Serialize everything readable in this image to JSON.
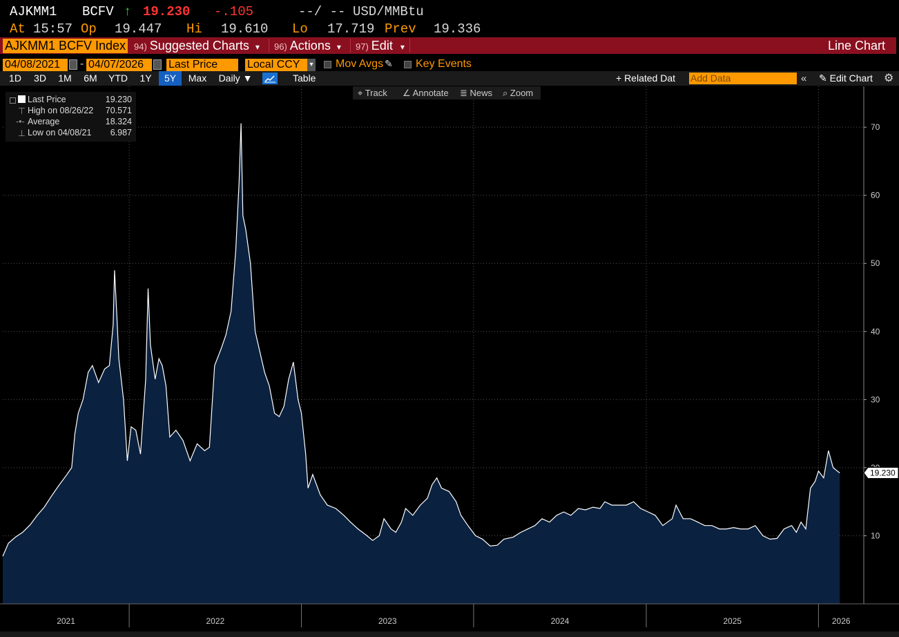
{
  "header": {
    "ticker": "AJKMM1",
    "source": "BCFV",
    "up_arrow": "↑",
    "last": "19.230",
    "change": "-.105",
    "bidask": "--/ --",
    "units": "USD/MMBtu",
    "at_label": "At",
    "time": "15:57",
    "open_label": "Op",
    "open": "19.447",
    "high_label": "Hi",
    "high": "19.610",
    "low_label": "Lo",
    "low": "17.719",
    "prev_label": "Prev",
    "prev": "19.336"
  },
  "menubar": {
    "security": "AJKMM1 BCFV Index",
    "suggested_num": "94)",
    "suggested": "Suggested Charts",
    "actions_num": "96)",
    "actions": "Actions",
    "edit_num": "97)",
    "edit": "Edit",
    "caret": "▾",
    "chart_title": "Line Chart"
  },
  "controls": {
    "start_date": "04/08/2021",
    "end_date": "04/07/2026",
    "dash": "-",
    "field": "Last Price",
    "currency": "Local CCY",
    "mov_avgs": "Mov Avgs",
    "key_events": "Key Events"
  },
  "range": {
    "buttons": [
      "1D",
      "3D",
      "1M",
      "6M",
      "YTD",
      "1Y",
      "5Y",
      "Max"
    ],
    "active": "5Y",
    "frequency": "Daily ▼",
    "table": "Table",
    "related": "+ Related Dat",
    "add_data_placeholder": "Add Data",
    "edit_chart": "Edit Chart"
  },
  "tools": {
    "track": "Track",
    "annotate": "Annotate",
    "news": "News",
    "zoom": "Zoom"
  },
  "legend": {
    "last_label": "Last Price",
    "last_value": "19.230",
    "high_label": "High on 08/26/22",
    "high_value": "70.571",
    "avg_label": "Average",
    "avg_value": "18.324",
    "low_label": "Low on 04/08/21",
    "low_value": "6.987"
  },
  "colors": {
    "background": "#000000",
    "area_fill": "#0b2140",
    "line": "#ffffff",
    "accent_orange": "#ff9900",
    "menu_red": "#8a1020",
    "negative": "#ff3333",
    "positive": "#22dd22"
  },
  "chart_data": {
    "type": "area",
    "series": [
      {
        "name": "Last Price",
        "points": [
          [
            "2021-04-08",
            6.99
          ],
          [
            "2021-04-20",
            8.9
          ],
          [
            "2021-05-05",
            9.8
          ],
          [
            "2021-05-20",
            10.5
          ],
          [
            "2021-06-05",
            11.6
          ],
          [
            "2021-06-20",
            13.0
          ],
          [
            "2021-07-05",
            14.2
          ],
          [
            "2021-07-20",
            15.8
          ],
          [
            "2021-08-05",
            17.4
          ],
          [
            "2021-08-20",
            18.8
          ],
          [
            "2021-09-01",
            20.0
          ],
          [
            "2021-09-08",
            25.0
          ],
          [
            "2021-09-15",
            28.0
          ],
          [
            "2021-09-25",
            30.0
          ],
          [
            "2021-10-06",
            34.0
          ],
          [
            "2021-10-15",
            35.0
          ],
          [
            "2021-10-28",
            32.5
          ],
          [
            "2021-11-10",
            34.5
          ],
          [
            "2021-11-20",
            35.0
          ],
          [
            "2021-11-28",
            41.0
          ],
          [
            "2021-12-01",
            49.0
          ],
          [
            "2021-12-06",
            42.0
          ],
          [
            "2021-12-10",
            36.0
          ],
          [
            "2021-12-20",
            30.0
          ],
          [
            "2021-12-28",
            21.0
          ],
          [
            "2022-01-05",
            26.0
          ],
          [
            "2022-01-15",
            25.5
          ],
          [
            "2022-01-25",
            22.0
          ],
          [
            "2022-02-05",
            33.0
          ],
          [
            "2022-02-10",
            46.3
          ],
          [
            "2022-02-15",
            38.0
          ],
          [
            "2022-02-25",
            33.0
          ],
          [
            "2022-03-05",
            36.0
          ],
          [
            "2022-03-12",
            35.0
          ],
          [
            "2022-03-20",
            32.0
          ],
          [
            "2022-03-28",
            24.5
          ],
          [
            "2022-04-10",
            25.5
          ],
          [
            "2022-04-25",
            24.0
          ],
          [
            "2022-05-10",
            21.0
          ],
          [
            "2022-05-25",
            23.5
          ],
          [
            "2022-06-10",
            22.5
          ],
          [
            "2022-06-20",
            23.0
          ],
          [
            "2022-07-01",
            35.0
          ],
          [
            "2022-07-15",
            37.5
          ],
          [
            "2022-07-25",
            39.5
          ],
          [
            "2022-08-05",
            43.0
          ],
          [
            "2022-08-15",
            52.0
          ],
          [
            "2022-08-22",
            62.0
          ],
          [
            "2022-08-26",
            70.57
          ],
          [
            "2022-08-30",
            57.0
          ],
          [
            "2022-09-05",
            55.0
          ],
          [
            "2022-09-15",
            50.0
          ],
          [
            "2022-09-25",
            40.0
          ],
          [
            "2022-10-05",
            37.0
          ],
          [
            "2022-10-15",
            34.0
          ],
          [
            "2022-10-25",
            32.0
          ],
          [
            "2022-11-05",
            28.0
          ],
          [
            "2022-11-15",
            27.5
          ],
          [
            "2022-11-25",
            29.0
          ],
          [
            "2022-12-05",
            33.0
          ],
          [
            "2022-12-15",
            35.5
          ],
          [
            "2022-12-25",
            30.0
          ],
          [
            "2023-01-01",
            28.0
          ],
          [
            "2023-01-10",
            22.0
          ],
          [
            "2023-01-15",
            17.0
          ],
          [
            "2023-01-25",
            19.0
          ],
          [
            "2023-02-10",
            16.0
          ],
          [
            "2023-02-25",
            14.5
          ],
          [
            "2023-03-15",
            14.0
          ],
          [
            "2023-04-01",
            13.0
          ],
          [
            "2023-04-15",
            12.0
          ],
          [
            "2023-05-01",
            11.0
          ],
          [
            "2023-05-20",
            10.0
          ],
          [
            "2023-06-01",
            9.3
          ],
          [
            "2023-06-15",
            10.0
          ],
          [
            "2023-06-25",
            12.5
          ],
          [
            "2023-07-10",
            11.0
          ],
          [
            "2023-07-20",
            10.5
          ],
          [
            "2023-08-01",
            12.0
          ],
          [
            "2023-08-10",
            14.0
          ],
          [
            "2023-08-25",
            13.0
          ],
          [
            "2023-09-10",
            14.5
          ],
          [
            "2023-09-25",
            15.5
          ],
          [
            "2023-10-05",
            17.5
          ],
          [
            "2023-10-15",
            18.5
          ],
          [
            "2023-10-25",
            17.0
          ],
          [
            "2023-11-10",
            16.5
          ],
          [
            "2023-11-25",
            15.0
          ],
          [
            "2023-12-05",
            13.0
          ],
          [
            "2023-12-20",
            11.5
          ],
          [
            "2024-01-05",
            10.0
          ],
          [
            "2024-01-20",
            9.5
          ],
          [
            "2024-02-05",
            8.5
          ],
          [
            "2024-02-20",
            8.6
          ],
          [
            "2024-03-05",
            9.5
          ],
          [
            "2024-03-25",
            9.8
          ],
          [
            "2024-04-10",
            10.5
          ],
          [
            "2024-04-25",
            11.0
          ],
          [
            "2024-05-10",
            11.5
          ],
          [
            "2024-05-25",
            12.5
          ],
          [
            "2024-06-10",
            12.0
          ],
          [
            "2024-06-25",
            13.0
          ],
          [
            "2024-07-10",
            13.5
          ],
          [
            "2024-07-25",
            13.0
          ],
          [
            "2024-08-10",
            14.0
          ],
          [
            "2024-08-25",
            13.8
          ],
          [
            "2024-09-10",
            14.2
          ],
          [
            "2024-09-25",
            14.0
          ],
          [
            "2024-10-05",
            15.0
          ],
          [
            "2024-10-20",
            14.5
          ],
          [
            "2024-11-05",
            14.5
          ],
          [
            "2024-11-20",
            14.5
          ],
          [
            "2024-12-05",
            15.0
          ],
          [
            "2024-12-20",
            14.0
          ],
          [
            "2025-01-05",
            13.5
          ],
          [
            "2025-01-20",
            13.0
          ],
          [
            "2025-02-05",
            11.5
          ],
          [
            "2025-02-15",
            12.0
          ],
          [
            "2025-02-25",
            12.5
          ],
          [
            "2025-03-05",
            14.5
          ],
          [
            "2025-03-20",
            12.5
          ],
          [
            "2025-04-05",
            12.5
          ],
          [
            "2025-04-20",
            12.0
          ],
          [
            "2025-05-05",
            11.5
          ],
          [
            "2025-05-20",
            11.5
          ],
          [
            "2025-06-05",
            11.0
          ],
          [
            "2025-06-20",
            11.0
          ],
          [
            "2025-07-05",
            11.2
          ],
          [
            "2025-07-20",
            11.0
          ],
          [
            "2025-08-05",
            11.0
          ],
          [
            "2025-08-20",
            11.5
          ],
          [
            "2025-09-05",
            10.0
          ],
          [
            "2025-09-20",
            9.5
          ],
          [
            "2025-10-05",
            9.6
          ],
          [
            "2025-10-20",
            11.0
          ],
          [
            "2025-11-05",
            11.5
          ],
          [
            "2025-11-15",
            10.5
          ],
          [
            "2025-11-25",
            12.0
          ],
          [
            "2025-12-05",
            11.0
          ],
          [
            "2025-12-15",
            17.0
          ],
          [
            "2025-12-25",
            18.0
          ],
          [
            "2026-01-01",
            19.5
          ],
          [
            "2026-01-12",
            18.5
          ],
          [
            "2026-01-22",
            22.5
          ],
          [
            "2026-02-01",
            20.0
          ],
          [
            "2026-02-10",
            19.5
          ],
          [
            "2026-02-15",
            19.23
          ]
        ]
      }
    ],
    "x_labels": [
      "2021",
      "2022",
      "2023",
      "2024",
      "2025",
      "2026"
    ],
    "x_range": [
      "2021-04-08",
      "2026-04-07"
    ],
    "y_ticks": [
      10,
      20,
      30,
      40,
      50,
      60,
      70
    ],
    "ylim": [
      0,
      76
    ],
    "last_value_label": "19.230",
    "grid": true,
    "legend": "top-left"
  }
}
